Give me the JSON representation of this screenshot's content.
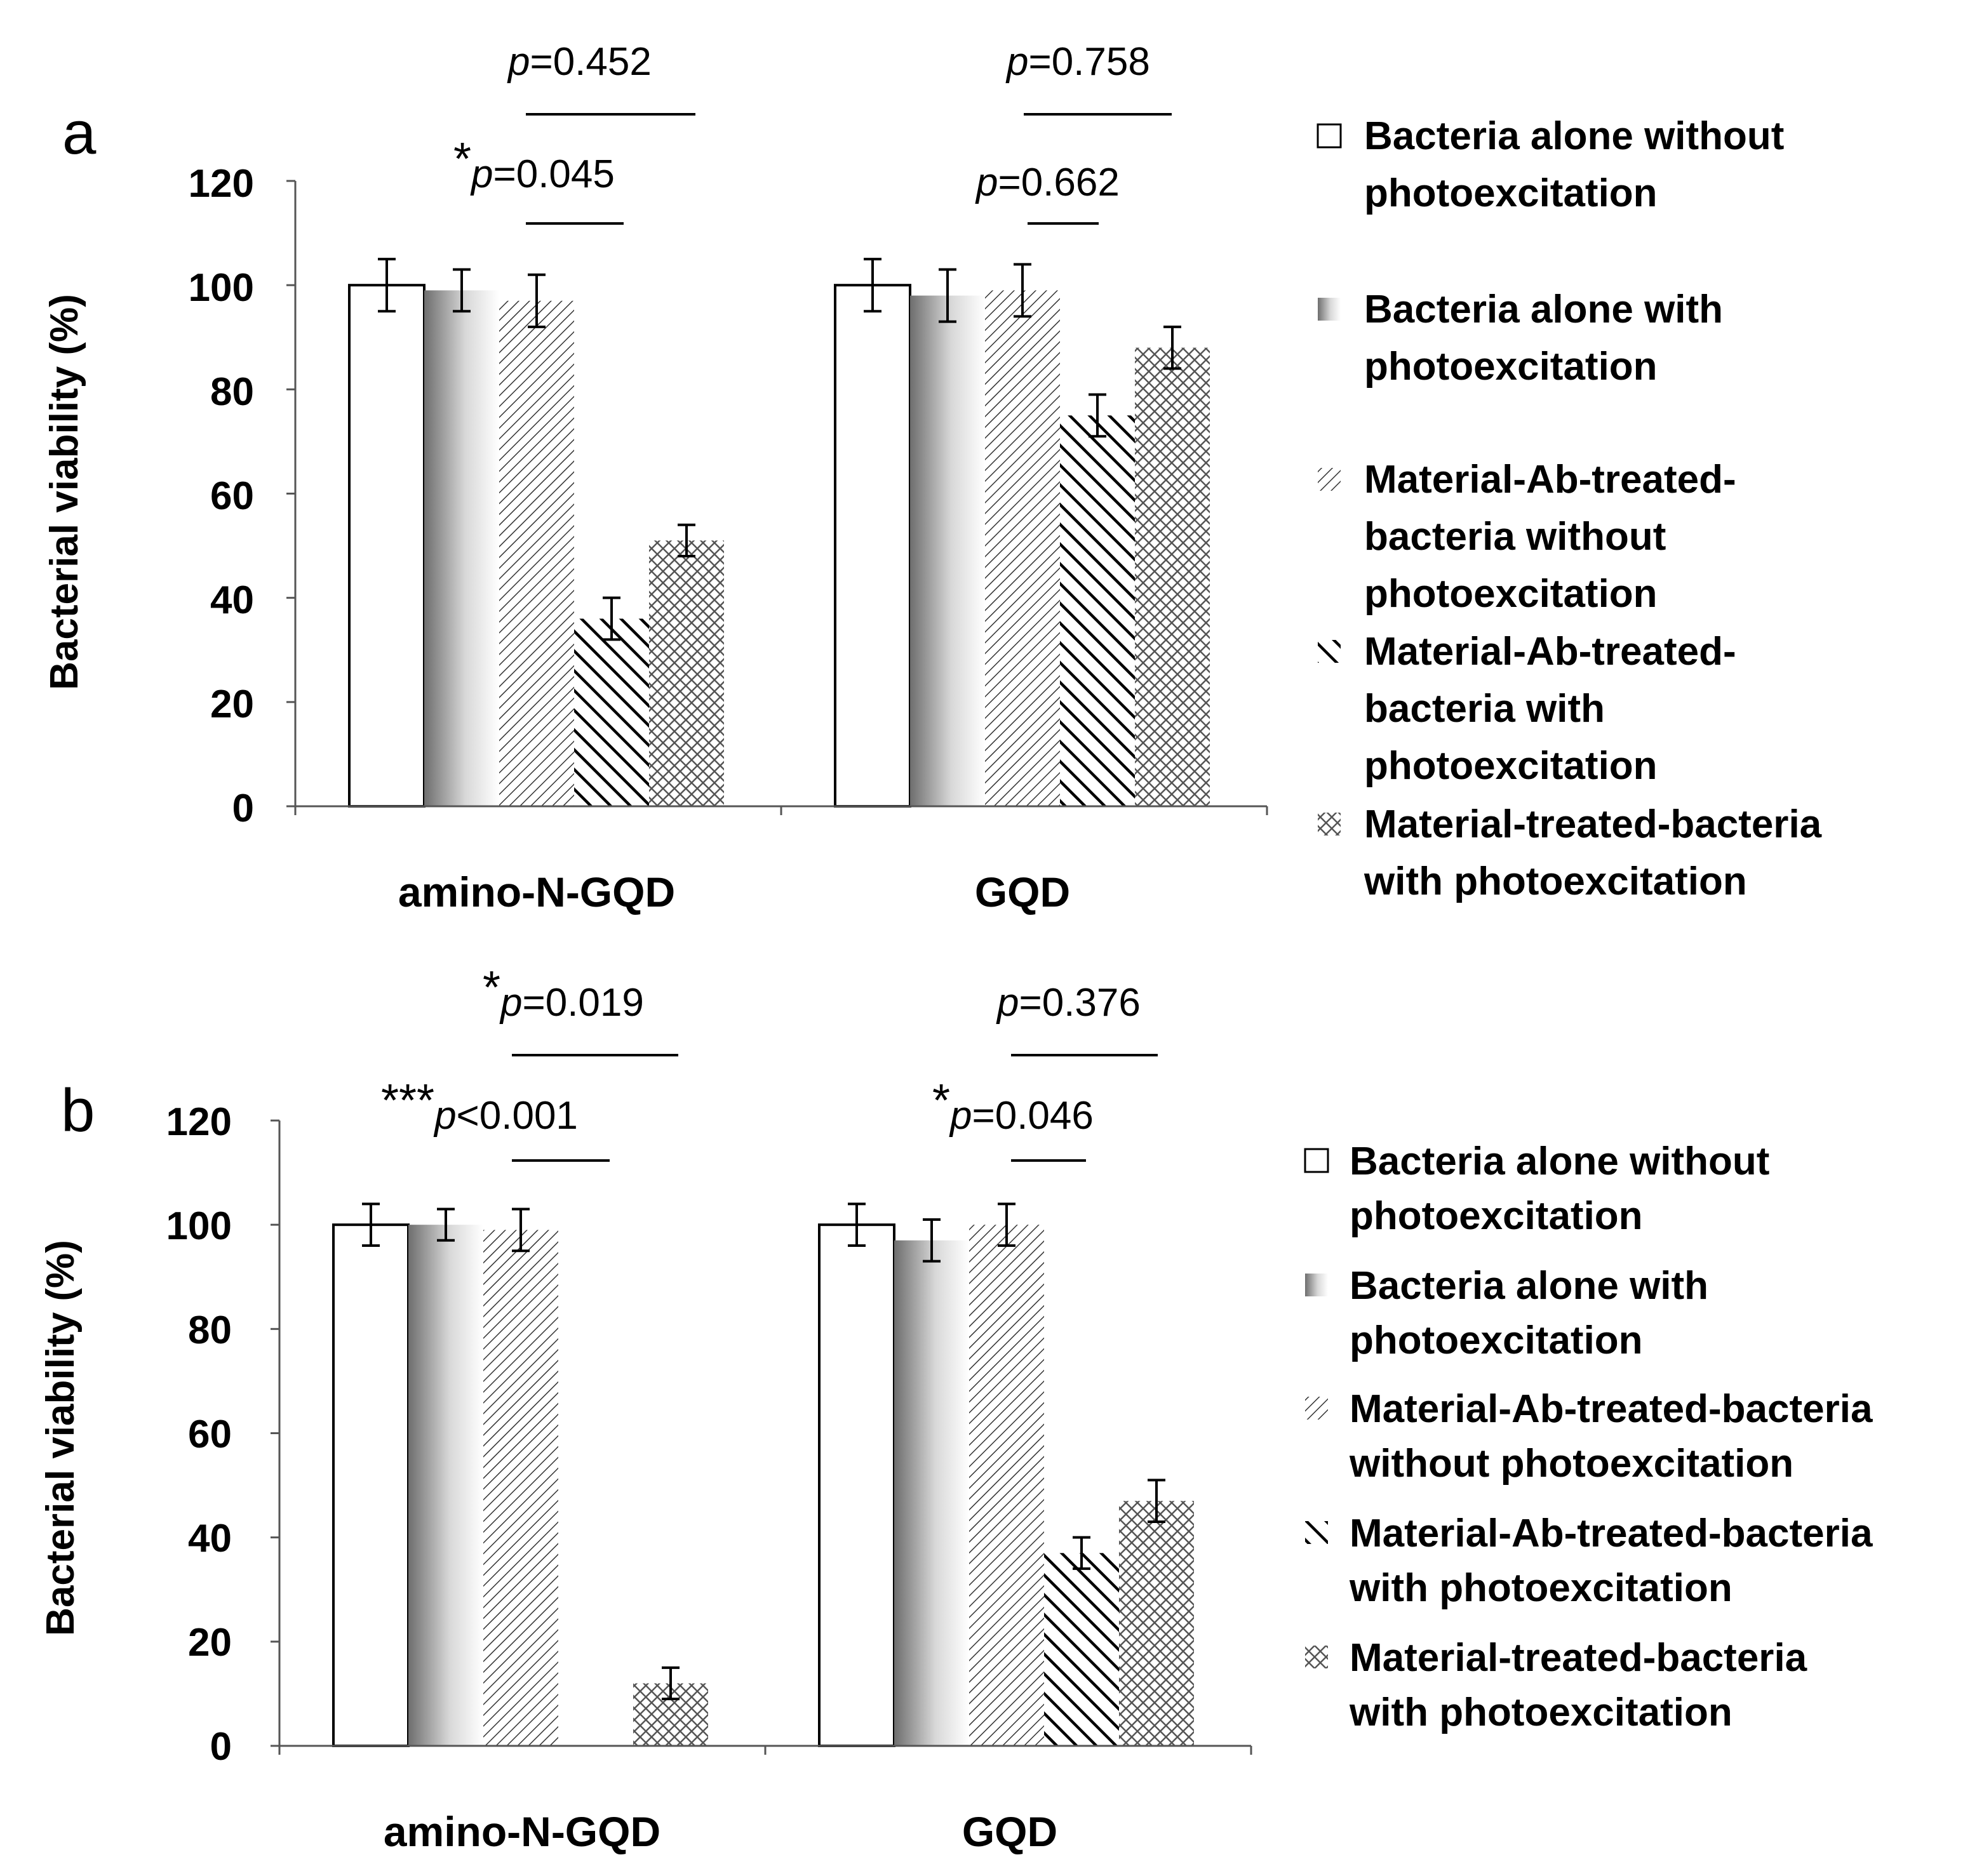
{
  "colors": {
    "bar_outline": "#000000",
    "hatch": "#333333",
    "gradient_light": "#ffffff",
    "gradient_dark": "#6e6e6e"
  },
  "icons": {
    "legend_series_1": "white-square-icon",
    "legend_series_2": "gradient-square-icon",
    "legend_series_3": "fine-diagonal-hatch-icon",
    "legend_series_4": "bold-diagonal-hatch-icon",
    "legend_series_5": "crosshatch-icon"
  },
  "chart_data": [
    {
      "type": "bar",
      "panel_label": "a",
      "xlabel": "",
      "ylabel": "Bacterial viability (%)",
      "ylim": [
        0,
        120
      ],
      "yticks": [
        "0",
        "20",
        "40",
        "60",
        "80",
        "100",
        "120"
      ],
      "categories": [
        "amino-N-GQD",
        "GQD"
      ],
      "series": [
        {
          "name": "Bacteria alone without photoexcitation",
          "values": [
            100,
            100
          ],
          "errors": [
            5,
            5
          ]
        },
        {
          "name": "Bacteria alone with photoexcitation",
          "values": [
            99,
            98
          ],
          "errors": [
            4,
            5
          ]
        },
        {
          "name": "Material-Ab-treated-bacteria without photoexcitation",
          "values": [
            97,
            99
          ],
          "errors": [
            5,
            5
          ]
        },
        {
          "name": "Material-Ab-treated-bacteria with photoexcitation",
          "values": [
            36,
            75
          ],
          "errors": [
            4,
            4
          ]
        },
        {
          "name": "Material-treated-bacteria with photoexcitation",
          "values": [
            51,
            88
          ],
          "errors": [
            3,
            4
          ]
        }
      ],
      "legend_lines": [
        [
          "Bacteria alone without",
          "photoexcitation"
        ],
        [
          "Bacteria alone with",
          "photoexcitation"
        ],
        [
          "Material-Ab-treated-",
          "bacteria without",
          "photoexcitation"
        ],
        [
          "Material-Ab-treated-",
          "bacteria with",
          "photoexcitation"
        ],
        [
          "Material-treated-bacteria",
          "with photoexcitation"
        ]
      ],
      "annotations": [
        {
          "stars": "",
          "p_letter": "p",
          "text": "=0.452"
        },
        {
          "stars": "*",
          "p_letter": "p",
          "text": "=0.045"
        },
        {
          "stars": "",
          "p_letter": "p",
          "text": "=0.758"
        },
        {
          "stars": "",
          "p_letter": "p",
          "text": "=0.662"
        }
      ]
    },
    {
      "type": "bar",
      "panel_label": "b",
      "xlabel": "",
      "ylabel": "Bacterial viability (%)",
      "ylim": [
        0,
        120
      ],
      "yticks": [
        "0",
        "20",
        "40",
        "60",
        "80",
        "100",
        "120"
      ],
      "categories": [
        "amino-N-GQD",
        "GQD"
      ],
      "series": [
        {
          "name": "Bacteria alone without photoexcitation",
          "values": [
            100,
            100
          ],
          "errors": [
            4,
            4
          ]
        },
        {
          "name": "Bacteria alone with photoexcitation",
          "values": [
            100,
            97
          ],
          "errors": [
            3,
            4
          ]
        },
        {
          "name": "Material-Ab-treated-bacteria without photoexcitation",
          "values": [
            99,
            100
          ],
          "errors": [
            4,
            4
          ]
        },
        {
          "name": "Material-Ab-treated-bacteria with photoexcitation",
          "values": [
            0,
            37
          ],
          "errors": [
            0,
            3
          ]
        },
        {
          "name": "Material-treated-bacteria with photoexcitation",
          "values": [
            12,
            47
          ],
          "errors": [
            3,
            4
          ]
        }
      ],
      "legend_lines": [
        [
          "Bacteria alone without",
          "photoexcitation"
        ],
        [
          "Bacteria alone with",
          "photoexcitation"
        ],
        [
          "Material-Ab-treated-bacteria",
          "without photoexcitation"
        ],
        [
          "Material-Ab-treated-bacteria",
          "with photoexcitation"
        ],
        [
          "Material-treated-bacteria",
          "with photoexcitation"
        ]
      ],
      "annotations": [
        {
          "stars": "*",
          "p_letter": "p",
          "text": "=0.019"
        },
        {
          "stars": "***",
          "p_letter": "p",
          "text": "<0.001"
        },
        {
          "stars": "",
          "p_letter": "p",
          "text": "=0.376"
        },
        {
          "stars": "*",
          "p_letter": "p",
          "text": "=0.046"
        }
      ]
    }
  ]
}
